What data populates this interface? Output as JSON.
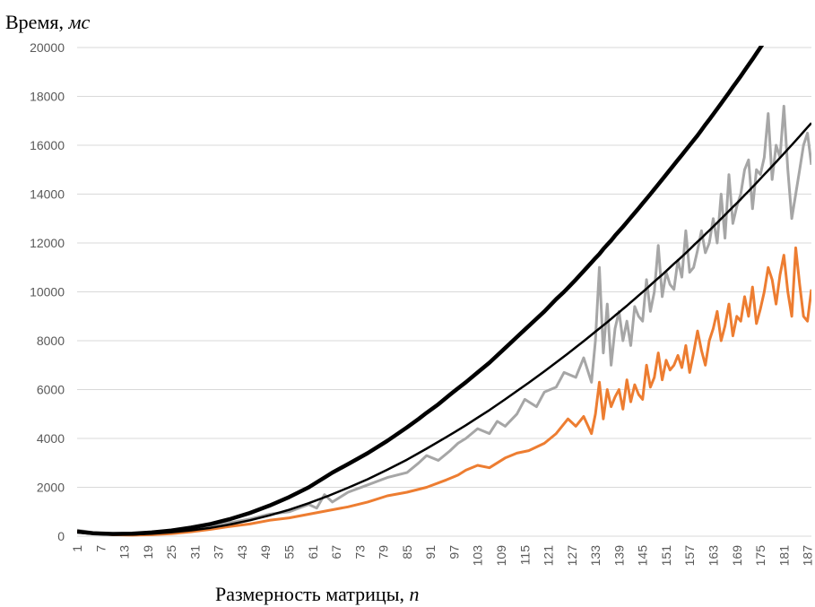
{
  "chart_data": {
    "type": "line",
    "ylabel": {
      "text": "Время, ",
      "unit": "мс"
    },
    "xlabel": {
      "text": "Размерность матрицы, ",
      "var": "n"
    },
    "ylim": [
      0,
      20000
    ],
    "y_ticks": [
      "0",
      "2000",
      "4000",
      "6000",
      "8000",
      "10000",
      "12000",
      "14000",
      "16000",
      "18000",
      "20000"
    ],
    "x_range": [
      1,
      188
    ],
    "x_ticks": [
      "1",
      "7",
      "13",
      "19",
      "25",
      "31",
      "37",
      "43",
      "49",
      "55",
      "61",
      "67",
      "73",
      "79",
      "85",
      "91",
      "97",
      "103",
      "109",
      "115",
      "121",
      "127",
      "133",
      "139",
      "145",
      "151",
      "157",
      "163",
      "169",
      "175",
      "181",
      "187"
    ],
    "grid": true,
    "legend": "none",
    "series": [
      {
        "color": "#a6a6a6",
        "x": [
          1,
          5,
          10,
          15,
          20,
          25,
          30,
          35,
          40,
          45,
          50,
          55,
          60,
          62,
          64,
          66,
          70,
          75,
          80,
          85,
          88,
          90,
          93,
          96,
          98,
          100,
          103,
          106,
          108,
          110,
          113,
          115,
          118,
          120,
          123,
          125,
          128,
          130,
          132,
          133,
          134,
          135,
          136,
          137,
          138,
          139,
          140,
          141,
          142,
          143,
          144,
          145,
          146,
          147,
          148,
          149,
          150,
          151,
          152,
          153,
          154,
          155,
          156,
          157,
          158,
          159,
          160,
          161,
          162,
          163,
          164,
          165,
          166,
          167,
          168,
          169,
          170,
          171,
          172,
          173,
          174,
          175,
          176,
          177,
          178,
          179,
          180,
          181,
          182,
          183,
          184,
          185,
          186,
          187,
          188
        ],
        "y": [
          250,
          150,
          80,
          60,
          80,
          150,
          250,
          400,
          550,
          700,
          900,
          1000,
          1300,
          1150,
          1700,
          1400,
          1800,
          2100,
          2400,
          2600,
          3000,
          3300,
          3100,
          3500,
          3800,
          4000,
          4400,
          4200,
          4700,
          4500,
          5000,
          5600,
          5300,
          5900,
          6100,
          6700,
          6500,
          7300,
          6300,
          8000,
          11000,
          7500,
          9500,
          7000,
          8500,
          9200,
          8000,
          8800,
          7800,
          9400,
          9000,
          8800,
          10500,
          9200,
          10000,
          11900,
          9800,
          10800,
          10300,
          10100,
          11300,
          10600,
          12500,
          10800,
          11000,
          11700,
          12500,
          11600,
          12000,
          13000,
          12000,
          14000,
          12200,
          14800,
          12800,
          13500,
          14000,
          15000,
          15400,
          13400,
          15000,
          14800,
          15500,
          17300,
          14600,
          16000,
          15500,
          17600,
          15000,
          13000,
          14000,
          15000,
          16000,
          16500,
          15200
        ],
        "trend": [
          190,
          120,
          90,
          100,
          150,
          230,
          350,
          500,
          700,
          950,
          1250,
          1600,
          2000,
          2200,
          2400,
          2600,
          2950,
          3400,
          3900,
          4450,
          4800,
          5050,
          5400,
          5800,
          6050,
          6300,
          6700,
          7100,
          7400,
          7700,
          8150,
          8450,
          8900,
          9200,
          9700,
          10000,
          10500,
          10850,
          11200,
          11380,
          11550,
          11750,
          11930,
          12100,
          12300,
          12480,
          12660,
          12850,
          13040,
          13230,
          13420,
          13620,
          13810,
          14000,
          14200,
          14400,
          14600,
          14800,
          15000,
          15200,
          15400,
          15600,
          15800,
          16000,
          16200,
          16400,
          16620,
          16840,
          17050,
          17270,
          17490,
          17710,
          17930,
          18150,
          18380,
          18600,
          18830,
          19060,
          19290,
          19520,
          19760,
          20000,
          20240,
          20480,
          20720,
          20960,
          21200,
          21450,
          21700,
          21950,
          22200,
          22450,
          22700,
          22950,
          23200
        ]
      },
      {
        "color": "#ed7d31",
        "x": [
          1,
          5,
          10,
          15,
          20,
          25,
          30,
          35,
          40,
          45,
          50,
          55,
          60,
          65,
          70,
          75,
          80,
          85,
          90,
          95,
          98,
          100,
          103,
          106,
          110,
          113,
          116,
          120,
          123,
          126,
          128,
          130,
          132,
          133,
          134,
          135,
          136,
          137,
          138,
          139,
          140,
          141,
          142,
          143,
          144,
          145,
          146,
          147,
          148,
          149,
          150,
          151,
          152,
          153,
          154,
          155,
          156,
          157,
          158,
          159,
          160,
          161,
          162,
          163,
          164,
          165,
          166,
          167,
          168,
          169,
          170,
          171,
          172,
          173,
          174,
          175,
          176,
          177,
          178,
          179,
          180,
          181,
          182,
          183,
          184,
          185,
          186,
          187,
          188
        ],
        "y": [
          200,
          120,
          60,
          40,
          60,
          100,
          180,
          280,
          400,
          500,
          650,
          750,
          900,
          1050,
          1200,
          1400,
          1650,
          1800,
          2000,
          2300,
          2500,
          2700,
          2900,
          2800,
          3200,
          3400,
          3500,
          3800,
          4200,
          4800,
          4500,
          4900,
          4200,
          5000,
          6300,
          4800,
          6000,
          5300,
          5700,
          6000,
          5200,
          6400,
          5500,
          6200,
          5800,
          5600,
          7000,
          6100,
          6500,
          7500,
          6400,
          7200,
          6800,
          7000,
          7400,
          6900,
          7800,
          6700,
          7500,
          8400,
          7600,
          7000,
          8000,
          8500,
          9200,
          8000,
          8600,
          9500,
          8200,
          9000,
          8800,
          9800,
          9000,
          10200,
          8700,
          9300,
          10000,
          11000,
          10500,
          9500,
          10700,
          11500,
          10000,
          9000,
          11800,
          10300,
          9000,
          8800,
          10100
        ],
        "trend": [
          150,
          90,
          60,
          70,
          100,
          160,
          240,
          340,
          480,
          650,
          850,
          1080,
          1350,
          1650,
          1980,
          2330,
          2720,
          3130,
          3580,
          4050,
          4340,
          4540,
          4850,
          5160,
          5600,
          5940,
          6280,
          6750,
          7110,
          7480,
          7730,
          7980,
          8240,
          8370,
          8500,
          8630,
          8760,
          8890,
          9030,
          9160,
          9300,
          9430,
          9570,
          9710,
          9850,
          9990,
          10130,
          10270,
          10420,
          10560,
          10700,
          10850,
          11000,
          11150,
          11290,
          11440,
          11590,
          11740,
          11900,
          12050,
          12200,
          12360,
          12510,
          12670,
          12830,
          12990,
          13150,
          13310,
          13470,
          13630,
          13790,
          13960,
          14120,
          14290,
          14460,
          14630,
          14800,
          14970,
          15140,
          15310,
          15490,
          15660,
          15840,
          16010,
          16190,
          16370,
          16550,
          16730,
          16910
        ]
      }
    ]
  }
}
